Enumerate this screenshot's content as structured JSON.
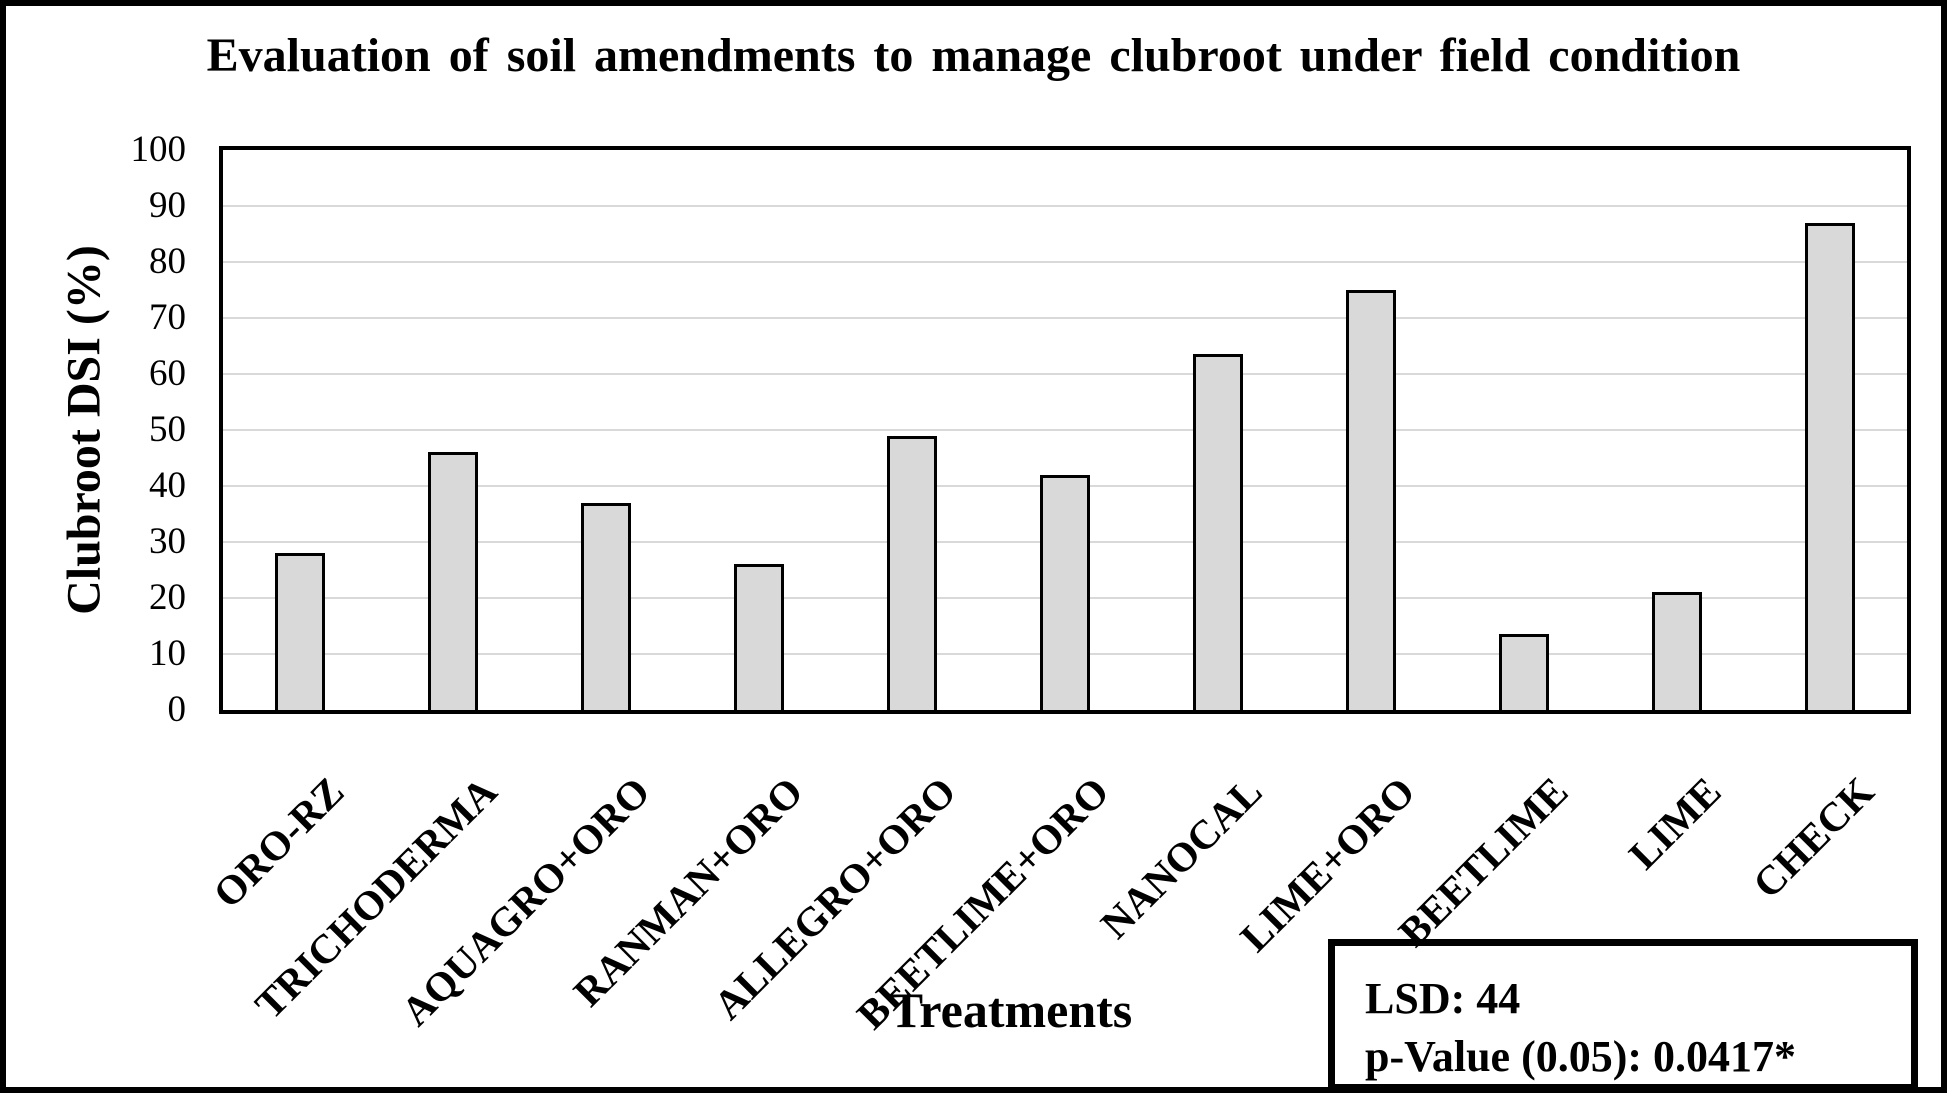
{
  "chart_data": {
    "type": "bar",
    "title": "Evaluation of soil amendments to manage clubroot under field condition",
    "xlabel": "Treatments",
    "ylabel": "Clubroot DSI (%)",
    "categories": [
      "ORO-RZ",
      "TRICHODERMA",
      "AQUAGRO+ORO",
      "RANMAN+ORO",
      "ALLEGRO+ORO",
      "BEETLIME+ORO",
      "NANOCAL",
      "LIME+ORO",
      "BEETLIME",
      "LIME",
      "CHECK"
    ],
    "values": [
      28,
      46,
      37,
      26,
      49,
      42,
      63.5,
      75,
      13.5,
      21,
      87
    ],
    "ylim": [
      0,
      100
    ],
    "ytick_step": 10,
    "grid": "horizontal",
    "legend_position": "bottom-right",
    "colors": {
      "bar_fill": "#d9d9d9",
      "bar_border": "#000000",
      "gridline": "#d9d9d9",
      "axis": "#000000",
      "text": "#000000"
    }
  },
  "annotation_box": {
    "line1": "LSD: 44",
    "line2": "p-Value (0.05): 0.0417*"
  }
}
